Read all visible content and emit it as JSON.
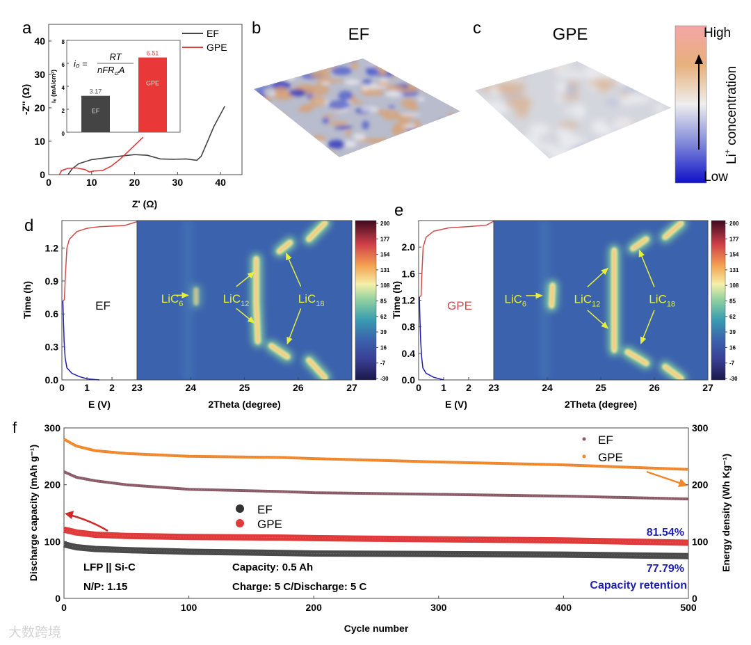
{
  "panel_labels": {
    "a": "a",
    "b": "b",
    "c": "c",
    "d": "d",
    "e": "e",
    "f": "f"
  },
  "watermark": "大数跨境",
  "colors": {
    "ef": "#444444",
    "gpe": "#e03a3a",
    "ef_energy": "#8a5a66",
    "gpe_energy": "#f0862a",
    "retention": "#1d1fb0",
    "heat_bg": "#3b62ad",
    "peak": "#f7f29a",
    "annot": "#e6ef3a",
    "discharge": "#1c1ca8",
    "charge": "#d04a4a"
  },
  "chart_data": [
    {
      "id": "a",
      "type": "line",
      "title": "",
      "xlabel": "Z' (Ω)",
      "ylabel": "-Z'' (Ω)",
      "xlim": [
        0,
        45
      ],
      "ylim": [
        0,
        45
      ],
      "xticks": [
        "0",
        "10",
        "20",
        "30",
        "40"
      ],
      "yticks": [
        "0",
        "10",
        "20",
        "30",
        "40"
      ],
      "legend": {
        "placement": "top-right",
        "entries": [
          "EF",
          "GPE"
        ]
      },
      "series": [
        {
          "name": "EF",
          "points": [
            [
              4.5,
              0
            ],
            [
              5.5,
              1.8
            ],
            [
              7,
              3.3
            ],
            [
              10,
              4.5
            ],
            [
              15,
              5.3
            ],
            [
              20,
              6
            ],
            [
              23,
              5.8
            ],
            [
              26,
              4.7
            ],
            [
              29,
              4.6
            ],
            [
              32,
              4.7
            ],
            [
              34.5,
              4.3
            ],
            [
              35.5,
              5.5
            ],
            [
              37,
              10
            ],
            [
              38.5,
              14.5
            ],
            [
              41,
              20.5
            ]
          ]
        },
        {
          "name": "GPE",
          "points": [
            [
              2.5,
              0
            ],
            [
              3,
              1.2
            ],
            [
              4.5,
              1.9
            ],
            [
              6.5,
              2
            ],
            [
              8.5,
              1.5
            ],
            [
              9.5,
              0.8
            ],
            [
              10.5,
              1.1
            ],
            [
              12.5,
              1.2
            ],
            [
              14.5,
              2.5
            ],
            [
              16.5,
              4.5
            ],
            [
              18,
              6.3
            ],
            [
              20,
              8.8
            ],
            [
              22,
              11.2
            ]
          ]
        }
      ],
      "inset": {
        "type": "bar",
        "ylabel": "i₀ (mA/cm²)",
        "ylim": [
          0,
          8
        ],
        "yticks": [
          "0",
          "2",
          "4",
          "6",
          "8"
        ],
        "formula_lhs": "i₀ =",
        "formula_num": "RT",
        "formula_den": "nFR",
        "formula_den_sub": "ct",
        "formula_den_tail": "A",
        "categories": [
          "EF",
          "GPE"
        ],
        "values": [
          3.17,
          6.51
        ],
        "value_labels": [
          "3.17",
          "6.51"
        ]
      }
    },
    {
      "id": "b",
      "type": "heatmap",
      "title": "EF",
      "description_hidden": false
    },
    {
      "id": "c",
      "type": "heatmap",
      "title": "GPE",
      "colorbar": {
        "high": "High",
        "low": "Low",
        "label_main": "Li",
        "label_sup": "+",
        "label_tail": " concentration"
      }
    },
    {
      "id": "d",
      "type": "heatmap",
      "label": "EF",
      "left_xlabel": "E (V)",
      "left_xlim": [
        0,
        3
      ],
      "left_xticks": [
        "0",
        "1",
        "2"
      ],
      "xlabel": "2Theta (degree)",
      "xlim": [
        23,
        27
      ],
      "xticks": [
        "23",
        "24",
        "25",
        "26",
        "27"
      ],
      "ylabel": "Time (h)",
      "ylim": [
        0,
        1.45
      ],
      "yticks": [
        "0.0",
        "0.3",
        "0.6",
        "0.9",
        "1.2"
      ],
      "ytick_values": [
        0,
        0.3,
        0.6,
        0.9,
        1.2
      ],
      "colorbar_ticks": [
        "200",
        "177",
        "154",
        "131",
        "108",
        "85",
        "62",
        "39",
        "16",
        "-7",
        "-30"
      ],
      "discharge": [
        [
          0.04,
          0.72
        ],
        [
          0.06,
          0.55
        ],
        [
          0.09,
          0.35
        ],
        [
          0.13,
          0.2
        ],
        [
          0.2,
          0.11
        ],
        [
          0.4,
          0.06
        ],
        [
          0.7,
          0.03
        ],
        [
          1.0,
          0.01
        ],
        [
          1.5,
          0
        ]
      ],
      "charge": [
        [
          0.04,
          0.72
        ],
        [
          0.1,
          0.73
        ],
        [
          0.14,
          0.95
        ],
        [
          0.2,
          1.2
        ],
        [
          0.3,
          1.28
        ],
        [
          0.6,
          1.35
        ],
        [
          1.0,
          1.38
        ],
        [
          1.5,
          1.395
        ],
        [
          2.5,
          1.405
        ],
        [
          3,
          1.44
        ]
      ],
      "peaks": [
        {
          "phase": "LiC12",
          "path": [
            [
              25.25,
              0.35
            ],
            [
              25.22,
              0.7
            ],
            [
              25.22,
              1.1
            ]
          ],
          "strength": 1
        },
        {
          "phase": "LiC18",
          "path": [
            [
              25.5,
              0.31
            ],
            [
              25.8,
              0.21
            ]
          ],
          "strength": 1
        },
        {
          "phase": "LiC18",
          "path": [
            [
              26.2,
              0.18
            ],
            [
              26.5,
              0.02
            ]
          ],
          "strength": 1
        },
        {
          "phase": "LiC18",
          "path": [
            [
              25.65,
              1.17
            ],
            [
              25.85,
              1.25
            ]
          ],
          "strength": 1
        },
        {
          "phase": "LiC18",
          "path": [
            [
              26.2,
              1.28
            ],
            [
              26.5,
              1.43
            ]
          ],
          "strength": 1
        },
        {
          "phase": "LiC6",
          "path": [
            [
              24.1,
              0.7
            ],
            [
              24.1,
              0.82
            ]
          ],
          "strength": 0.5
        }
      ],
      "annotations": [
        {
          "main": "LiC",
          "sub": "6",
          "at": [
            23.45,
            0.74
          ],
          "arrows": [
            [
              [
                23.72,
                0.77
              ],
              [
                23.95,
                0.77
              ]
            ]
          ]
        },
        {
          "main": "LiC",
          "sub": "12",
          "at": [
            24.6,
            0.74
          ],
          "arrows": [
            [
              [
                24.85,
                0.85
              ],
              [
                25.18,
                0.98
              ]
            ],
            [
              [
                24.85,
                0.65
              ],
              [
                25.18,
                0.52
              ]
            ]
          ]
        },
        {
          "main": "LiC",
          "sub": "18",
          "at": [
            26.0,
            0.74
          ],
          "arrows": [
            [
              [
                26.05,
                0.85
              ],
              [
                25.78,
                1.15
              ]
            ],
            [
              [
                26.05,
                0.65
              ],
              [
                25.8,
                0.33
              ]
            ]
          ]
        }
      ]
    },
    {
      "id": "e",
      "type": "heatmap",
      "label": "GPE",
      "left_xlabel": "E (V)",
      "left_xlim": [
        0,
        3
      ],
      "left_xticks": [
        "0",
        "1",
        "2"
      ],
      "xlabel": "2Theta (degree)",
      "xlim": [
        23,
        27
      ],
      "xticks": [
        "23",
        "24",
        "25",
        "26",
        "27"
      ],
      "ylabel": "Time (h)",
      "ylim": [
        0,
        2.4
      ],
      "yticks": [
        "0.0",
        "0.4",
        "0.8",
        "1.2",
        "1.6",
        "2.0"
      ],
      "ytick_values": [
        0,
        0.4,
        0.8,
        1.2,
        1.6,
        2.0
      ],
      "colorbar_ticks": [
        "200",
        "177",
        "154",
        "131",
        "108",
        "85",
        "62",
        "39",
        "16",
        "-7",
        "-30"
      ],
      "discharge": [
        [
          0.03,
          1.25
        ],
        [
          0.05,
          0.95
        ],
        [
          0.08,
          0.6
        ],
        [
          0.12,
          0.35
        ],
        [
          0.17,
          0.18
        ],
        [
          0.3,
          0.1
        ],
        [
          0.6,
          0.04
        ],
        [
          1.0,
          0
        ]
      ],
      "charge": [
        [
          0.04,
          1.25
        ],
        [
          0.1,
          1.27
        ],
        [
          0.13,
          1.6
        ],
        [
          0.18,
          2.0
        ],
        [
          0.3,
          2.15
        ],
        [
          0.6,
          2.24
        ],
        [
          1.2,
          2.29
        ],
        [
          2.0,
          2.31
        ],
        [
          2.7,
          2.33
        ],
        [
          3,
          2.39
        ]
      ],
      "peaks": [
        {
          "phase": "LiC12",
          "path": [
            [
              25.25,
              0.45
            ],
            [
              25.25,
              1.2
            ],
            [
              25.25,
              1.95
            ]
          ],
          "strength": 1
        },
        {
          "phase": "LiC18",
          "path": [
            [
              25.5,
              0.42
            ],
            [
              25.85,
              0.25
            ]
          ],
          "strength": 1
        },
        {
          "phase": "LiC18",
          "path": [
            [
              26.2,
              0.2
            ],
            [
              26.5,
              0.02
            ]
          ],
          "strength": 1
        },
        {
          "phase": "LiC18",
          "path": [
            [
              25.6,
              1.98
            ],
            [
              25.85,
              2.12
            ]
          ],
          "strength": 1
        },
        {
          "phase": "LiC18",
          "path": [
            [
              26.2,
              2.15
            ],
            [
              26.5,
              2.36
            ]
          ],
          "strength": 1
        },
        {
          "phase": "LiC6",
          "path": [
            [
              24.08,
              1.12
            ],
            [
              24.1,
              1.42
            ]
          ],
          "strength": 1
        }
      ],
      "annotations": [
        {
          "main": "LiC",
          "sub": "6",
          "at": [
            23.2,
            1.22
          ],
          "arrows": [
            [
              [
                23.6,
                1.27
              ],
              [
                23.9,
                1.27
              ]
            ]
          ]
        },
        {
          "main": "LiC",
          "sub": "12",
          "at": [
            24.5,
            1.22
          ],
          "arrows": [
            [
              [
                24.75,
                1.4
              ],
              [
                25.13,
                1.68
              ]
            ],
            [
              [
                24.75,
                1.05
              ],
              [
                25.13,
                0.78
              ]
            ]
          ]
        },
        {
          "main": "LiC",
          "sub": "18",
          "at": [
            25.9,
            1.22
          ],
          "arrows": [
            [
              [
                26.0,
                1.4
              ],
              [
                25.72,
                1.95
              ]
            ],
            [
              [
                26.0,
                1.05
              ],
              [
                25.75,
                0.55
              ]
            ]
          ]
        }
      ]
    },
    {
      "id": "f",
      "type": "scatter",
      "xlabel": "Cycle number",
      "ylabel": "Discharge capacity (mAh g⁻¹)",
      "ylabel_right": "Energy density (Wh Kg⁻¹)",
      "xlim": [
        0,
        500
      ],
      "ylim": [
        0,
        300
      ],
      "ylim_right": [
        0,
        300
      ],
      "xticks": [
        "0",
        "100",
        "200",
        "300",
        "400",
        "500"
      ],
      "yticks": [
        "0",
        "100",
        "200",
        "300"
      ],
      "yticks_right": [
        "0",
        "100",
        "200",
        "300"
      ],
      "x": [
        0,
        10,
        25,
        50,
        100,
        175,
        200,
        300,
        400,
        500
      ],
      "series": [
        {
          "name": "EF",
          "axis": "left",
          "values": [
            95,
            90,
            87,
            85,
            82,
            80,
            79,
            78,
            77,
            74.5
          ]
        },
        {
          "name": "GPE",
          "axis": "left",
          "values": [
            121,
            116,
            112,
            110,
            108,
            107,
            106,
            104,
            102,
            98
          ]
        },
        {
          "name": "EF",
          "axis": "right",
          "values": [
            223,
            213,
            207,
            200,
            192,
            188,
            186,
            183,
            180,
            175
          ]
        },
        {
          "name": "GPE",
          "axis": "right",
          "values": [
            280,
            268,
            260,
            255,
            250,
            248,
            246,
            240,
            235,
            227
          ]
        }
      ],
      "legend_left": [
        "EF",
        "GPE"
      ],
      "legend_right": [
        "EF",
        "GPE"
      ],
      "annotations": {
        "cell": "LFP || Si-C",
        "np": "N/P: 1.15",
        "capacity": "Capacity: 0.5 Ah",
        "rate": "Charge: 5 C/Discharge: 5 C",
        "gpe_retention": "81.54%",
        "ef_retention": "77.79%",
        "retention_label": "Capacity retention"
      }
    }
  ]
}
